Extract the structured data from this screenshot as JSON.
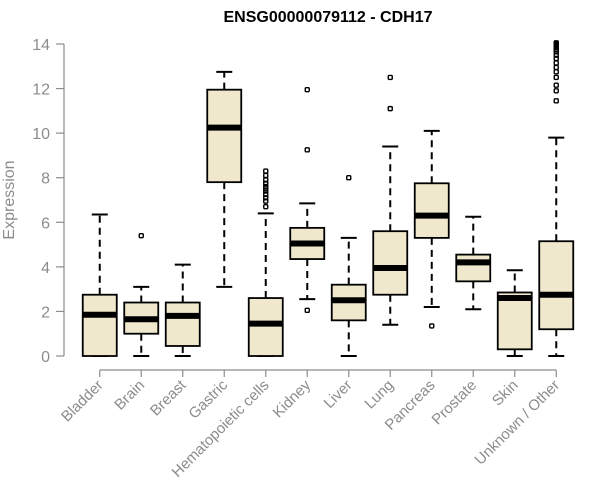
{
  "chart_data": {
    "type": "boxplot",
    "title": "ENSG00000079112 - CDH17",
    "xlabel": "",
    "ylabel": "Expression",
    "ylim": [
      0,
      14
    ],
    "yticks": [
      0,
      2,
      4,
      6,
      8,
      10,
      12,
      14
    ],
    "ytick_labels": [
      "0",
      "2",
      "4",
      "6",
      "8",
      "10",
      "12",
      "14"
    ],
    "grid": false,
    "colors": {
      "box_fill": "#efe8cc",
      "stroke": "#000000",
      "axis": "#8c8c8c"
    },
    "categories": [
      "Bladder",
      "Brain",
      "Breast",
      "Gastric",
      "Hematopoietic cells",
      "Kidney",
      "Liver",
      "Lung",
      "Pancreas",
      "Prostate",
      "Skin",
      "Unknown / Other"
    ],
    "boxes": [
      {
        "label": "Bladder",
        "whisker_low": 0.0,
        "q1": 0.0,
        "median": 1.85,
        "q3": 2.75,
        "whisker_high": 6.35,
        "outliers": []
      },
      {
        "label": "Brain",
        "whisker_low": 0.0,
        "q1": 1.0,
        "median": 1.65,
        "q3": 2.4,
        "whisker_high": 3.1,
        "outliers": [
          5.4
        ]
      },
      {
        "label": "Breast",
        "whisker_low": 0.0,
        "q1": 0.45,
        "median": 1.8,
        "q3": 2.4,
        "whisker_high": 4.1,
        "outliers": []
      },
      {
        "label": "Gastric",
        "whisker_low": 3.1,
        "q1": 7.8,
        "median": 10.25,
        "q3": 11.95,
        "whisker_high": 12.75,
        "outliers": []
      },
      {
        "label": "Hematopoietic cells",
        "whisker_low": 0.0,
        "q1": 0.0,
        "median": 1.45,
        "q3": 2.6,
        "whisker_high": 6.4,
        "outliers": [
          6.7,
          6.95,
          7.1,
          7.25,
          7.4,
          7.5,
          7.6,
          7.75,
          7.9,
          8.1,
          8.3
        ]
      },
      {
        "label": "Kidney",
        "whisker_low": 2.55,
        "q1": 4.35,
        "median": 5.05,
        "q3": 5.75,
        "whisker_high": 6.85,
        "outliers": [
          2.05,
          9.25,
          11.95
        ]
      },
      {
        "label": "Liver",
        "whisker_low": 0.0,
        "q1": 1.6,
        "median": 2.5,
        "q3": 3.2,
        "whisker_high": 5.3,
        "outliers": [
          8.0
        ]
      },
      {
        "label": "Lung",
        "whisker_low": 1.4,
        "q1": 2.75,
        "median": 3.95,
        "q3": 5.6,
        "whisker_high": 9.4,
        "outliers": [
          11.1,
          12.5
        ]
      },
      {
        "label": "Pancreas",
        "whisker_low": 2.2,
        "q1": 5.3,
        "median": 6.3,
        "q3": 7.75,
        "whisker_high": 10.1,
        "outliers": [
          1.35
        ]
      },
      {
        "label": "Prostate",
        "whisker_low": 2.1,
        "q1": 3.35,
        "median": 4.2,
        "q3": 4.55,
        "whisker_high": 6.25,
        "outliers": []
      },
      {
        "label": "Skin",
        "whisker_low": 0.0,
        "q1": 0.3,
        "median": 2.6,
        "q3": 2.85,
        "whisker_high": 3.85,
        "outliers": []
      },
      {
        "label": "Unknown / Other",
        "whisker_low": 0.0,
        "q1": 1.2,
        "median": 2.75,
        "q3": 5.15,
        "whisker_high": 9.8,
        "outliers": [
          11.45,
          11.9,
          12.15,
          12.5,
          12.75,
          12.95,
          13.15,
          13.35,
          13.5,
          13.65,
          13.75,
          13.85,
          13.9,
          13.95,
          14.0,
          14.05
        ]
      }
    ]
  }
}
